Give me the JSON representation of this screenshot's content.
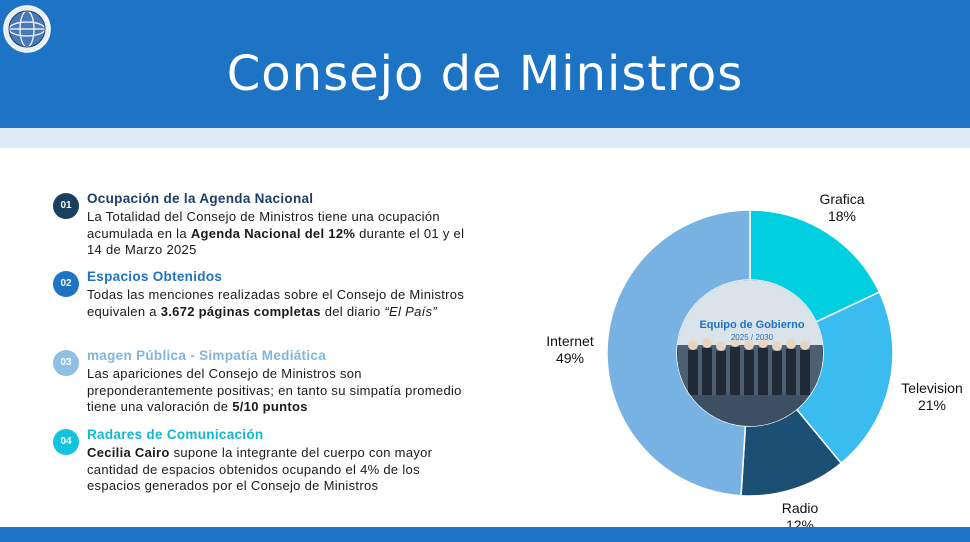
{
  "header": {
    "title": "Consejo de Ministros",
    "logo_icon": "globe-seal-icon",
    "color": "#1d73c4"
  },
  "items": [
    {
      "number": "01",
      "title": "Ocupación de la Agenda Nacional",
      "badge_color": "#1b3f5e",
      "title_color": "#1b3f6a",
      "text_1": "La Totalidad del Consejo de Ministros tiene una ocupación acumulada en la ",
      "bold_1": "Agenda Nacional del 12%",
      "text_2": " durante el 01 y el 14 de Marzo 2025"
    },
    {
      "number": "02",
      "title": "Espacios Obtenidos",
      "badge_color": "#1d73c4",
      "title_color": "#1d73c4",
      "text_1": "Todas las menciones realizadas sobre el Consejo de Ministros equivalen a ",
      "bold_1": "3.672 páginas completas",
      "text_2": " del diario ",
      "italic_1": "“El País”"
    },
    {
      "number": "03",
      "title": "magen Pública - Simpatía Mediática",
      "badge_color": "#8ec0e6",
      "title_color": "#7fb5df",
      "text_1": "Las apariciones del Consejo de Ministros son preponderantemente positivas; en tanto su simpatía promedio tiene una valoración de ",
      "bold_1": "5/10 puntos"
    },
    {
      "number": "04",
      "title": "Radares de Comunicación",
      "badge_color": "#11c3df",
      "title_color": "#11b7d3",
      "bold_1": "Cecilia Cairo",
      "text_1": " supone la integrante del cuerpo con mayor cantidad de espacios obtenidos ocupando el 4% de los espacios generados por el Consejo de Ministros"
    }
  ],
  "chart_data": {
    "type": "pie",
    "subtype": "donut",
    "start_angle_deg": 0,
    "direction": "clockwise",
    "slices": [
      {
        "label": "Grafica",
        "value": 18,
        "pct_label": "18%",
        "color": "#00cfe0"
      },
      {
        "label": "Television",
        "value": 21,
        "pct_label": "21%",
        "color": "#3bbcf0"
      },
      {
        "label": "Radio",
        "value": 12,
        "pct_label": "12%",
        "color": "#1b4f74"
      },
      {
        "label": "Internet",
        "value": 49,
        "pct_label": "49%",
        "color": "#78b2e3"
      }
    ],
    "center_image": {
      "banner_text": "Equipo de Gobierno",
      "banner_subtext": "2025 / 2030"
    }
  }
}
